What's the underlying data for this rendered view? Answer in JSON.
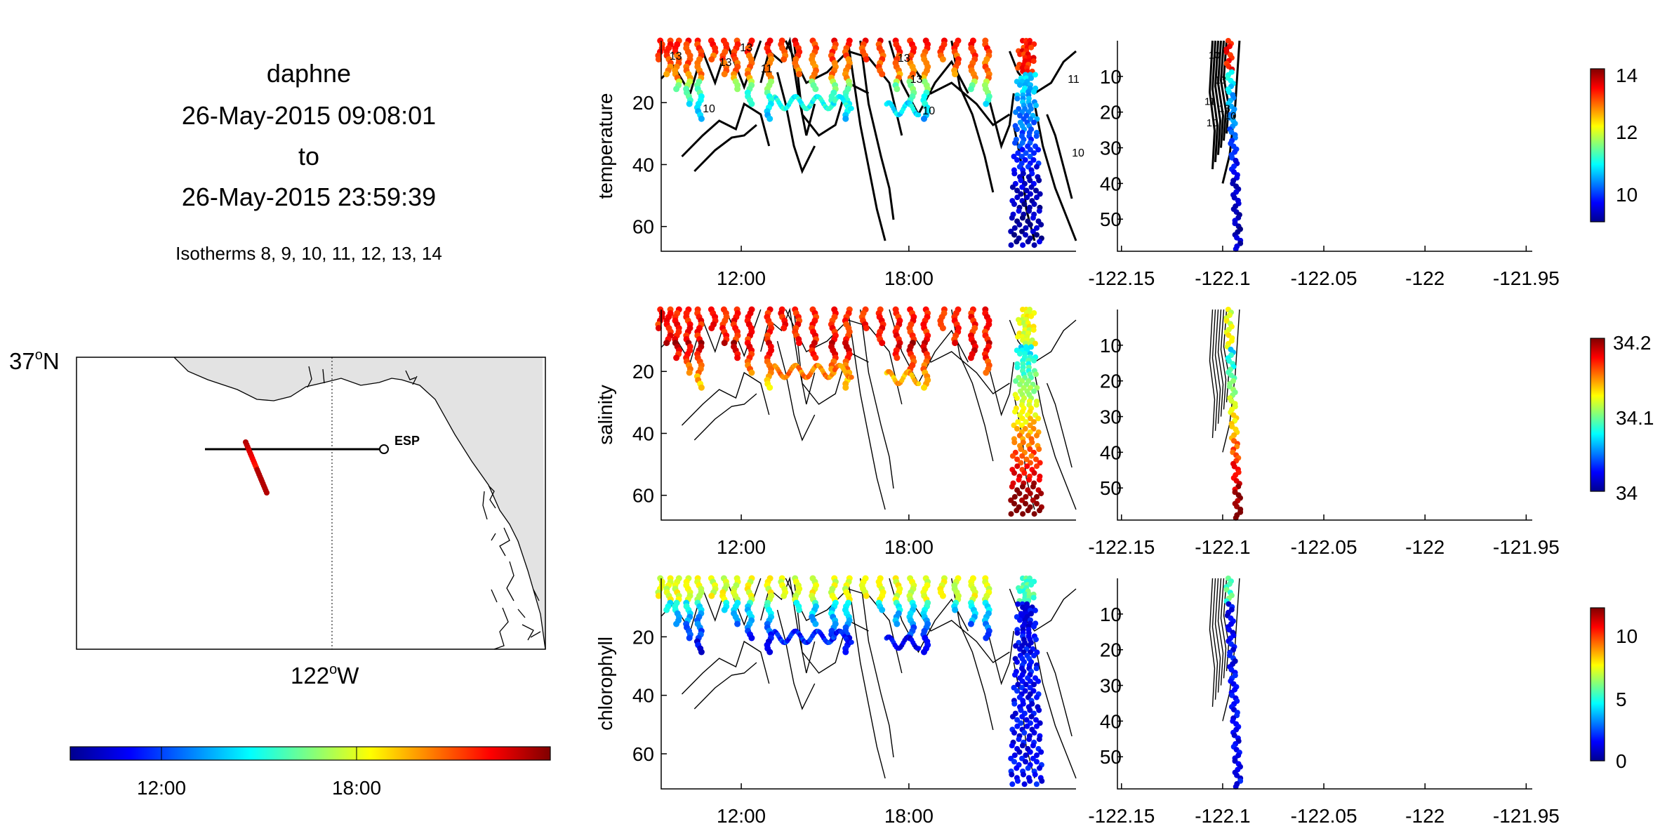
{
  "header": {
    "title": "daphne",
    "start_time": "26-May-2015 09:08:01",
    "to_label": "to",
    "end_time": "26-May-2015 23:59:39",
    "isotherms_note": "Isotherms 8, 9, 10, 11, 12, 13, 14"
  },
  "map": {
    "lat_label": "37",
    "lat_suffix": "N",
    "lon_label": "122",
    "lon_suffix": "W",
    "station_label": "ESP",
    "land_color": "#e3e3e3"
  },
  "time_colorbar": {
    "ticks": [
      "12:00",
      "18:00"
    ],
    "colormap": "jet"
  },
  "chart_data": [
    {
      "type": "scatter",
      "title": "",
      "ylabel": "temperature",
      "xlabel": "",
      "x_ticks": [
        "12:00",
        "18:00"
      ],
      "y_ticks": [
        20,
        40,
        60
      ],
      "x_range": [
        "09:08",
        "23:59"
      ],
      "ylim": [
        68,
        0
      ],
      "y_reversed": true,
      "contour_labels": [
        "13",
        "13",
        "13",
        "11",
        "10",
        "13",
        "10",
        "13",
        "10",
        "11"
      ],
      "colorbar": {
        "ticks": [
          10,
          12,
          14
        ],
        "range": [
          8.7,
          14.2
        ],
        "colormap": "jet"
      }
    },
    {
      "type": "scatter",
      "title": "",
      "ylabel": "",
      "xlabel": "",
      "x_ticks": [
        -122.15,
        -122.1,
        -122.05,
        -122,
        -121.95
      ],
      "x_tick_labels": [
        "-122.15",
        "-122.1",
        "-122.05",
        "-122",
        "-121.95"
      ],
      "xlim": [
        -122.152,
        -121.947
      ],
      "y_ticks": [
        10,
        20,
        30,
        40,
        50
      ],
      "ylim": [
        59,
        0
      ],
      "y_reversed": true,
      "contour_labels": [
        "10",
        "13",
        "11",
        "10",
        "13",
        "10"
      ]
    },
    {
      "type": "scatter",
      "title": "",
      "ylabel": "salinity",
      "xlabel": "",
      "x_ticks": [
        "12:00",
        "18:00"
      ],
      "y_ticks": [
        20,
        40,
        60
      ],
      "x_range": [
        "09:08",
        "23:59"
      ],
      "ylim": [
        68,
        0
      ],
      "y_reversed": true,
      "colorbar": {
        "ticks": [
          34,
          34.1,
          34.2
        ],
        "range": [
          34,
          34.2
        ],
        "colormap": "jet"
      }
    },
    {
      "type": "scatter",
      "title": "",
      "ylabel": "",
      "xlabel": "",
      "x_ticks": [
        -122.15,
        -122.1,
        -122.05,
        -122,
        -121.95
      ],
      "x_tick_labels": [
        "-122.15",
        "-122.1",
        "-122.05",
        "-122",
        "-121.95"
      ],
      "xlim": [
        -122.152,
        -121.947
      ],
      "y_ticks": [
        10,
        20,
        30,
        40,
        50
      ],
      "ylim": [
        59,
        0
      ],
      "y_reversed": true
    },
    {
      "type": "scatter",
      "title": "",
      "ylabel": "chlorophyll",
      "xlabel": "",
      "x_ticks": [
        "12:00",
        "18:00"
      ],
      "y_ticks": [
        20,
        40,
        60
      ],
      "x_range": [
        "09:08",
        "23:59"
      ],
      "ylim": [
        72,
        0
      ],
      "y_reversed": true,
      "colorbar": {
        "ticks": [
          0,
          5,
          10
        ],
        "range": [
          0,
          12
        ],
        "colormap": "jet"
      }
    },
    {
      "type": "scatter",
      "title": "",
      "ylabel": "",
      "xlabel": "",
      "x_ticks": [
        -122.15,
        -122.1,
        -122.05,
        -122,
        -121.95
      ],
      "x_tick_labels": [
        "-122.15",
        "-122.1",
        "-122.05",
        "-122",
        "-121.95"
      ],
      "xlim": [
        -122.152,
        -121.947
      ],
      "y_ticks": [
        10,
        20,
        30,
        40,
        50
      ],
      "ylim": [
        59,
        0
      ],
      "y_reversed": true
    }
  ]
}
